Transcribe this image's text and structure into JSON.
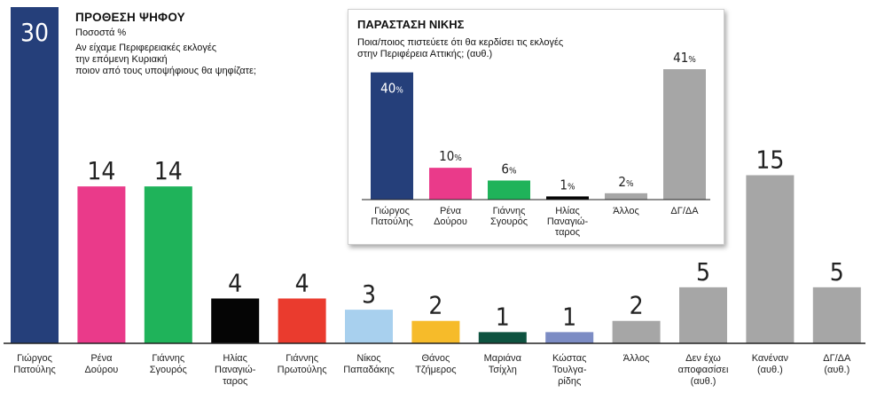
{
  "chart_data": [
    {
      "type": "bar",
      "title": "ΠΡΟΘΕΣΗ ΨΗΦΟΥ",
      "subtitle": "Ποσοστά %",
      "question_lines": [
        "Αν είχαμε Περιφερειακές εκλογές",
        "την επόμενη Κυριακή",
        "ποιον από τους υποψήφιους θα ψηφίζατε;"
      ],
      "ylim": [
        0,
        30
      ],
      "categories": [
        [
          "Γιώργος",
          "Πατούλης"
        ],
        [
          "Ρένα",
          "Δούρου"
        ],
        [
          "Γιάννης",
          "Σγουρός"
        ],
        [
          "Ηλίας",
          "Παναγιώ-",
          "ταρος"
        ],
        [
          "Γιάννης",
          "Πρωτούλης"
        ],
        [
          "Νίκος",
          "Παπαδάκης"
        ],
        [
          "Θάνος",
          "Τζήμερος"
        ],
        [
          "Μαριάνα",
          "Τσίχλη"
        ],
        [
          "Κώστας",
          "Τουλγα-",
          "ρίδης"
        ],
        [
          "Άλλος"
        ],
        [
          "Δεν έχω",
          "αποφασίσει",
          "(αυθ.)"
        ],
        [
          "Κανέναν",
          "(αυθ.)"
        ],
        [
          "ΔΓ/ΔΑ",
          "(αυθ.)"
        ]
      ],
      "values": [
        30,
        14,
        14,
        4,
        4,
        3,
        2,
        1,
        1,
        2,
        5,
        15,
        5
      ],
      "colors": [
        "#253f7a",
        "#ea3a8a",
        "#1fb35a",
        "#050505",
        "#ea3b2e",
        "#a8d0ee",
        "#f6bb2a",
        "#0e5340",
        "#7c8cc4",
        "#a6a6a6",
        "#a6a6a6",
        "#a6a6a6",
        "#a6a6a6"
      ]
    },
    {
      "type": "bar",
      "title": "ΠΑΡΑΣΤΑΣΗ ΝΙΚΗΣ",
      "question_lines": [
        "Ποια/ποιος πιστεύετε ότι θα κερδίσει τις εκλογές",
        "στην Περιφέρεια Αττικής; (αυθ.)"
      ],
      "ylim": [
        0,
        41
      ],
      "unit": "%",
      "categories": [
        [
          "Γιώργος",
          "Πατούλης"
        ],
        [
          "Ρένα",
          "Δούρου"
        ],
        [
          "Γιάννης",
          "Σγουρός"
        ],
        [
          "Ηλίας",
          "Παναγιώ-",
          "ταρος"
        ],
        [
          "Άλλος"
        ],
        [
          "ΔΓ/ΔΑ"
        ]
      ],
      "values": [
        40,
        10,
        6,
        1,
        2,
        41
      ],
      "colors": [
        "#253f7a",
        "#ea3a8a",
        "#1fb35a",
        "#050505",
        "#a6a6a6",
        "#a6a6a6"
      ]
    }
  ]
}
